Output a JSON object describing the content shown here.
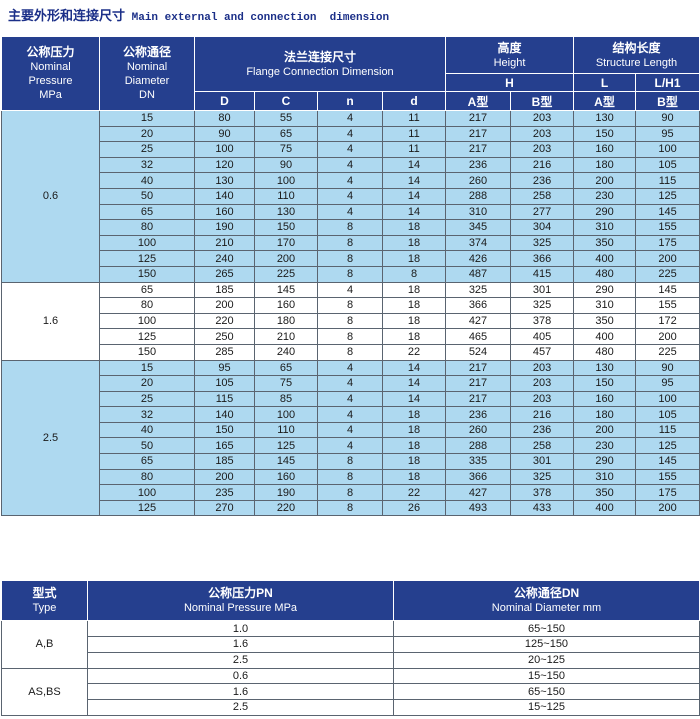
{
  "title": {
    "zh": "主要外形和连接尺寸",
    "en": " Main external and connection  dimension"
  },
  "colors": {
    "header_bg": "#253f8e",
    "row_blue": "#aed9f0",
    "row_white": "#ffffff",
    "title_text": "#1b2f88",
    "header_text": "#ffffff",
    "cell_text": "#1a1a1a",
    "grid": "#5a6470"
  },
  "main_table": {
    "header": {
      "pressure_zh": "公称压力",
      "pressure_en_lines": [
        "Nominal",
        "Pressure",
        "MPa"
      ],
      "diameter_zh": "公称通径",
      "diameter_en_lines": [
        "Nominal",
        "Diameter",
        "DN"
      ],
      "flange_zh": "法兰连接尺寸",
      "flange_en": "Flange Connection Dimension",
      "height_zh": "高度",
      "height_en": "Height",
      "structure_zh": "结构长度",
      "structure_en": "Structure Length",
      "h_label": "H",
      "l_label": "L",
      "lh1_label": "L/H1",
      "sub_cols": [
        "D",
        "C",
        "n",
        "d"
      ],
      "type_a": "A型",
      "type_b": "B型"
    },
    "groups": [
      {
        "pressure": "0.6",
        "shade": "blue",
        "rows": [
          [
            "15",
            "80",
            "55",
            "4",
            "11",
            "217",
            "203",
            "130",
            "90"
          ],
          [
            "20",
            "90",
            "65",
            "4",
            "11",
            "217",
            "203",
            "150",
            "95"
          ],
          [
            "25",
            "100",
            "75",
            "4",
            "11",
            "217",
            "203",
            "160",
            "100"
          ],
          [
            "32",
            "120",
            "90",
            "4",
            "14",
            "236",
            "216",
            "180",
            "105"
          ],
          [
            "40",
            "130",
            "100",
            "4",
            "14",
            "260",
            "236",
            "200",
            "115"
          ],
          [
            "50",
            "140",
            "110",
            "4",
            "14",
            "288",
            "258",
            "230",
            "125"
          ],
          [
            "65",
            "160",
            "130",
            "4",
            "14",
            "310",
            "277",
            "290",
            "145"
          ],
          [
            "80",
            "190",
            "150",
            "8",
            "18",
            "345",
            "304",
            "310",
            "155"
          ],
          [
            "100",
            "210",
            "170",
            "8",
            "18",
            "374",
            "325",
            "350",
            "175"
          ],
          [
            "125",
            "240",
            "200",
            "8",
            "18",
            "426",
            "366",
            "400",
            "200"
          ],
          [
            "150",
            "265",
            "225",
            "8",
            "8",
            "487",
            "415",
            "480",
            "225"
          ]
        ]
      },
      {
        "pressure": "1.6",
        "shade": "white",
        "rows": [
          [
            "65",
            "185",
            "145",
            "4",
            "18",
            "325",
            "301",
            "290",
            "145"
          ],
          [
            "80",
            "200",
            "160",
            "8",
            "18",
            "366",
            "325",
            "310",
            "155"
          ],
          [
            "100",
            "220",
            "180",
            "8",
            "18",
            "427",
            "378",
            "350",
            "172"
          ],
          [
            "125",
            "250",
            "210",
            "8",
            "18",
            "465",
            "405",
            "400",
            "200"
          ],
          [
            "150",
            "285",
            "240",
            "8",
            "22",
            "524",
            "457",
            "480",
            "225"
          ]
        ]
      },
      {
        "pressure": "2.5",
        "shade": "blue",
        "rows": [
          [
            "15",
            "95",
            "65",
            "4",
            "14",
            "217",
            "203",
            "130",
            "90"
          ],
          [
            "20",
            "105",
            "75",
            "4",
            "14",
            "217",
            "203",
            "150",
            "95"
          ],
          [
            "25",
            "115",
            "85",
            "4",
            "14",
            "217",
            "203",
            "160",
            "100"
          ],
          [
            "32",
            "140",
            "100",
            "4",
            "18",
            "236",
            "216",
            "180",
            "105"
          ],
          [
            "40",
            "150",
            "110",
            "4",
            "18",
            "260",
            "236",
            "200",
            "115"
          ],
          [
            "50",
            "165",
            "125",
            "4",
            "18",
            "288",
            "258",
            "230",
            "125"
          ],
          [
            "65",
            "185",
            "145",
            "8",
            "18",
            "335",
            "301",
            "290",
            "145"
          ],
          [
            "80",
            "200",
            "160",
            "8",
            "18",
            "366",
            "325",
            "310",
            "155"
          ],
          [
            "100",
            "235",
            "190",
            "8",
            "22",
            "427",
            "378",
            "350",
            "175"
          ],
          [
            "125",
            "270",
            "220",
            "8",
            "26",
            "493",
            "433",
            "400",
            "200"
          ]
        ]
      }
    ]
  },
  "type_table": {
    "header": {
      "type_zh": "型式",
      "type_en": "Type",
      "pn_zh": "公称压力PN",
      "pn_en": "Nominal Pressure MPa",
      "dn_zh": "公称通径DN",
      "dn_en": "Nominal Diameter mm"
    },
    "groups": [
      {
        "type": "A,B",
        "rows": [
          [
            "1.0",
            "65~150"
          ],
          [
            "1.6",
            "125~150"
          ],
          [
            "2.5",
            "20~125"
          ]
        ]
      },
      {
        "type": "AS,BS",
        "rows": [
          [
            "0.6",
            "15~150"
          ],
          [
            "1.6",
            "65~150"
          ],
          [
            "2.5",
            "15~125"
          ]
        ]
      }
    ]
  }
}
